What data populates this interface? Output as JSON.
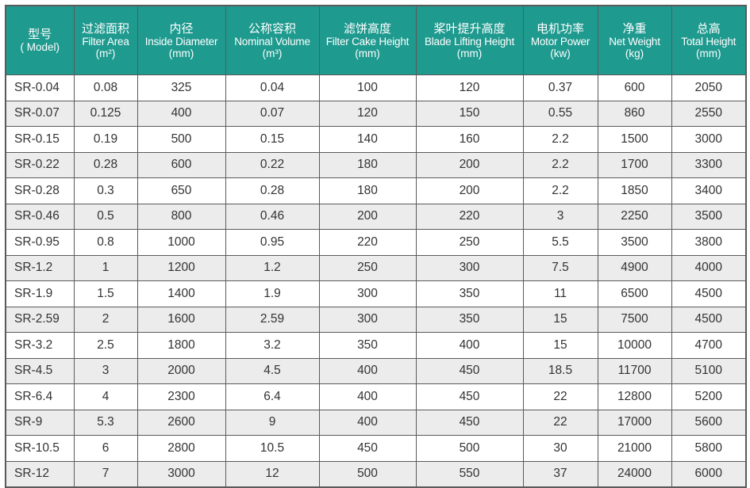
{
  "table": {
    "headers": [
      {
        "cn": "型号",
        "en": "",
        "unit": "( Model)"
      },
      {
        "cn": "过滤面积",
        "en": "Filter Area",
        "unit": "(m²)"
      },
      {
        "cn": "内径",
        "en": "Inside Diameter",
        "unit": "(mm)"
      },
      {
        "cn": "公称容积",
        "en": "Nominal Volume",
        "unit": "(m³)"
      },
      {
        "cn": "滤饼高度",
        "en": "Filter Cake Height",
        "unit": "(mm)"
      },
      {
        "cn": "桨叶提升高度",
        "en": "Blade Lifting Height",
        "unit": "(mm)"
      },
      {
        "cn": "电机功率",
        "en": "Motor Power",
        "unit": "(kw)"
      },
      {
        "cn": "净重",
        "en": "Net Weight",
        "unit": "(kg)"
      },
      {
        "cn": "总高",
        "en": "Total Height",
        "unit": "(mm)"
      }
    ],
    "rows": [
      [
        "SR-0.04",
        "0.08",
        "325",
        "0.04",
        "100",
        "120",
        "0.37",
        "600",
        "2050"
      ],
      [
        "SR-0.07",
        "0.125",
        "400",
        "0.07",
        "120",
        "150",
        "0.55",
        "860",
        "2550"
      ],
      [
        "SR-0.15",
        "0.19",
        "500",
        "0.15",
        "140",
        "160",
        "2.2",
        "1500",
        "3000"
      ],
      [
        "SR-0.22",
        "0.28",
        "600",
        "0.22",
        "180",
        "200",
        "2.2",
        "1700",
        "3300"
      ],
      [
        "SR-0.28",
        "0.3",
        "650",
        "0.28",
        "180",
        "200",
        "2.2",
        "1850",
        "3400"
      ],
      [
        "SR-0.46",
        "0.5",
        "800",
        "0.46",
        "200",
        "220",
        "3",
        "2250",
        "3500"
      ],
      [
        "SR-0.95",
        "0.8",
        "1000",
        "0.95",
        "220",
        "250",
        "5.5",
        "3500",
        "3800"
      ],
      [
        "SR-1.2",
        "1",
        "1200",
        "1.2",
        "250",
        "300",
        "7.5",
        "4900",
        "4000"
      ],
      [
        "SR-1.9",
        "1.5",
        "1400",
        "1.9",
        "300",
        "350",
        "11",
        "6500",
        "4500"
      ],
      [
        "SR-2.59",
        "2",
        "1600",
        "2.59",
        "300",
        "350",
        "15",
        "7500",
        "4500"
      ],
      [
        "SR-3.2",
        "2.5",
        "1800",
        "3.2",
        "350",
        "400",
        "15",
        "10000",
        "4700"
      ],
      [
        "SR-4.5",
        "3",
        "2000",
        "4.5",
        "400",
        "450",
        "18.5",
        "11700",
        "5100"
      ],
      [
        "SR-6.4",
        "4",
        "2300",
        "6.4",
        "400",
        "450",
        "22",
        "12800",
        "5200"
      ],
      [
        "SR-9",
        "5.3",
        "2600",
        "9",
        "400",
        "450",
        "22",
        "17000",
        "5600"
      ],
      [
        "SR-10.5",
        "6",
        "2800",
        "10.5",
        "450",
        "500",
        "30",
        "21000",
        "5800"
      ],
      [
        "SR-12",
        "7",
        "3000",
        "12",
        "500",
        "550",
        "37",
        "24000",
        "6000"
      ]
    ]
  },
  "colors": {
    "header_bg": "#1f9a8f",
    "header_text": "#ffffff",
    "row_alt_bg": "#ececec",
    "border": "#5a5a5a"
  }
}
